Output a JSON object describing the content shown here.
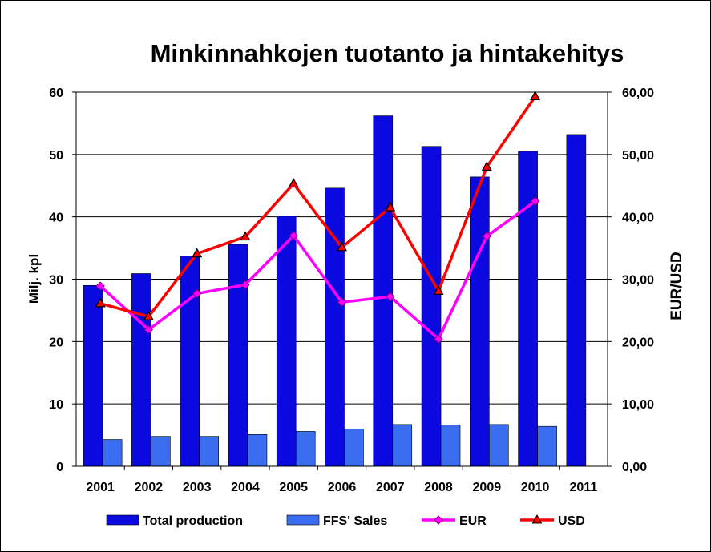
{
  "chart_data": {
    "type": "bar",
    "title": "Minkinnahkojen tuotanto ja hintakehitys",
    "ylabel": "Milj. kpl",
    "y2label": "EUR/USD",
    "ylim": [
      0,
      60
    ],
    "y2lim": [
      0,
      60
    ],
    "yticks": [
      "0",
      "10",
      "20",
      "30",
      "40",
      "50",
      "60"
    ],
    "y2ticks": [
      "0,00",
      "10,00",
      "20,00",
      "30,00",
      "40,00",
      "50,00",
      "60,00"
    ],
    "categories": [
      "2001",
      "2002",
      "2003",
      "2004",
      "2005",
      "2006",
      "2007",
      "2008",
      "2009",
      "2010",
      "2011"
    ],
    "grid": true,
    "legend_position": "bottom",
    "series": [
      {
        "name": "Total production",
        "kind": "bar",
        "axis": "left",
        "color": "#0a0ae0",
        "values": [
          29.0,
          30.9,
          33.7,
          35.6,
          40.1,
          44.6,
          56.2,
          51.3,
          46.4,
          50.5,
          53.2
        ]
      },
      {
        "name": "FFS' Sales",
        "kind": "bar",
        "axis": "left",
        "color": "#3a6df0",
        "values": [
          4.3,
          4.8,
          4.8,
          5.1,
          5.6,
          6.0,
          6.7,
          6.6,
          6.7,
          6.4,
          null
        ]
      },
      {
        "name": "EUR",
        "kind": "line",
        "axis": "right",
        "color": "#ff00ff",
        "marker": "diamond",
        "values": [
          28.9,
          21.9,
          27.7,
          29.1,
          37.0,
          26.3,
          27.2,
          20.4,
          36.9,
          42.5,
          null
        ]
      },
      {
        "name": "USD",
        "kind": "line",
        "axis": "right",
        "color": "#ff0000",
        "marker": "triangle",
        "values": [
          26.1,
          24.0,
          34.1,
          36.8,
          45.3,
          35.1,
          41.5,
          28.1,
          48.0,
          59.3,
          null
        ]
      }
    ]
  }
}
